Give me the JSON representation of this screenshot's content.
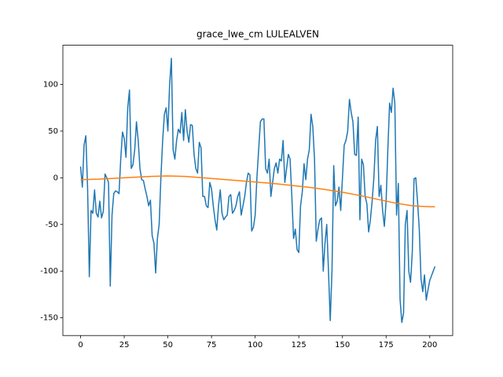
{
  "chart_data": {
    "type": "line",
    "title": "grace_lwe_cm LULEALVEN",
    "xlim": [
      -10.15,
      213.15
    ],
    "ylim": [
      -169,
      142
    ],
    "xticks": [
      0,
      25,
      50,
      75,
      100,
      125,
      150,
      175,
      200
    ],
    "yticks": [
      -150,
      -100,
      -50,
      0,
      50,
      100
    ],
    "series": [
      {
        "color": "#1f77b4",
        "x": [
          0,
          1,
          2,
          3,
          4,
          5,
          6,
          7,
          8,
          9,
          10,
          11,
          12,
          13,
          14,
          15,
          16,
          17,
          18,
          19,
          20,
          21,
          22,
          23,
          24,
          25,
          26,
          27,
          28,
          29,
          30,
          31,
          32,
          33,
          34,
          35,
          36,
          37,
          38,
          39,
          40,
          41,
          42,
          43,
          44,
          45,
          46,
          47,
          48,
          49,
          50,
          51,
          52,
          53,
          54,
          55,
          56,
          57,
          58,
          59,
          60,
          61,
          62,
          63,
          64,
          65,
          66,
          67,
          68,
          69,
          70,
          71,
          72,
          73,
          74,
          75,
          76,
          77,
          78,
          79,
          80,
          81,
          82,
          83,
          84,
          85,
          86,
          87,
          88,
          89,
          90,
          91,
          92,
          93,
          94,
          95,
          96,
          97,
          98,
          99,
          100,
          101,
          102,
          103,
          104,
          105,
          106,
          107,
          108,
          109,
          110,
          111,
          112,
          113,
          114,
          115,
          116,
          117,
          118,
          119,
          120,
          121,
          122,
          123,
          124,
          125,
          126,
          127,
          128,
          129,
          130,
          131,
          132,
          133,
          134,
          135,
          136,
          137,
          138,
          139,
          140,
          141,
          142,
          143,
          144,
          145,
          146,
          147,
          148,
          149,
          150,
          151,
          152,
          153,
          154,
          155,
          156,
          157,
          158,
          159,
          160,
          161,
          162,
          163,
          164,
          165,
          166,
          167,
          168,
          169,
          170,
          171,
          172,
          173,
          174,
          175,
          176,
          177,
          178,
          179,
          180,
          181,
          182,
          183,
          184,
          185,
          186,
          187,
          188,
          189,
          190,
          191,
          192,
          193,
          194,
          195,
          196,
          197,
          198,
          199,
          200,
          201,
          202,
          203
        ],
        "values": [
          12,
          -10,
          35,
          45,
          -10,
          -106,
          -35,
          -38,
          -13,
          -38,
          -42,
          -25,
          -43,
          -36,
          4,
          0,
          -5,
          -116,
          -40,
          -17,
          -14,
          -15,
          -17,
          20,
          49,
          42,
          22,
          75,
          94,
          10,
          14,
          30,
          60,
          40,
          10,
          -2,
          -3,
          -12,
          -20,
          -30,
          -24,
          -62,
          -70,
          -102,
          -65,
          -50,
          0,
          40,
          68,
          75,
          50,
          100,
          128,
          30,
          20,
          40,
          52,
          48,
          70,
          40,
          73,
          50,
          38,
          57,
          56,
          25,
          10,
          5,
          38,
          32,
          -20,
          -20,
          -30,
          -32,
          -5,
          -12,
          -30,
          -45,
          -56,
          -30,
          -13,
          -38,
          -45,
          -42,
          -40,
          -20,
          -18,
          -38,
          -35,
          -30,
          -20,
          -15,
          -40,
          -30,
          -20,
          -5,
          5,
          3,
          -57,
          -53,
          -40,
          0,
          30,
          60,
          63,
          63,
          10,
          5,
          20,
          -20,
          -5,
          10,
          16,
          5,
          20,
          18,
          40,
          -5,
          10,
          25,
          20,
          -20,
          -65,
          -55,
          -77,
          -80,
          -30,
          -15,
          15,
          -2,
          20,
          30,
          68,
          55,
          20,
          -68,
          -55,
          -45,
          -43,
          -100,
          -70,
          -50,
          -100,
          -153,
          -100,
          13,
          -30,
          -25,
          -10,
          -35,
          0,
          35,
          40,
          50,
          84,
          70,
          60,
          25,
          24,
          65,
          -45,
          20,
          14,
          -20,
          -28,
          -58,
          -45,
          -25,
          0,
          40,
          55,
          -20,
          -8,
          -35,
          -52,
          -25,
          30,
          80,
          70,
          96,
          80,
          -40,
          -6,
          -130,
          -155,
          -145,
          -50,
          -35,
          -100,
          -112,
          -80,
          -1,
          0,
          -25,
          -55,
          -108,
          -122,
          -104,
          -131,
          -120,
          -110,
          -105,
          -100,
          -95
        ]
      },
      {
        "color": "#ff7f0e",
        "x": [
          0,
          10,
          20,
          30,
          40,
          50,
          60,
          70,
          80,
          90,
          100,
          110,
          120,
          130,
          140,
          150,
          160,
          170,
          180,
          190,
          200,
          203
        ],
        "values": [
          -2,
          -1.5,
          -0.5,
          0.5,
          1.5,
          2,
          1.5,
          0,
          -1.5,
          -3,
          -4.5,
          -6,
          -8,
          -10,
          -12.5,
          -15.5,
          -19,
          -23,
          -27,
          -30,
          -31,
          -31
        ]
      }
    ]
  }
}
